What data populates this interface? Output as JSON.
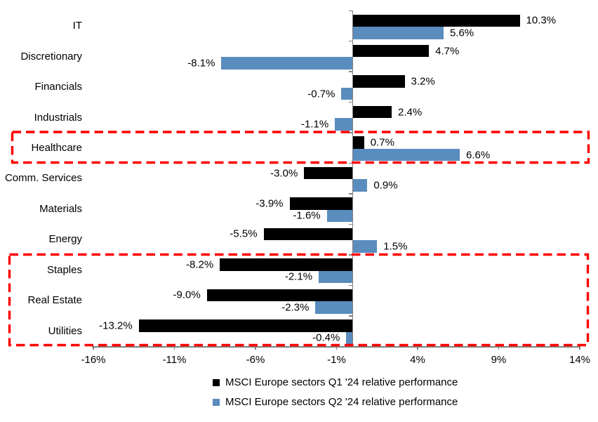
{
  "chart_data": {
    "type": "bar",
    "orientation": "horizontal",
    "title": "",
    "categories": [
      "IT",
      "Discretionary",
      "Financials",
      "Industrials",
      "Healthcare",
      "Comm. Services",
      "Materials",
      "Energy",
      "Staples",
      "Real Estate",
      "Utilities"
    ],
    "series": [
      {
        "name": "MSCI Europe sectors Q1 '24 relative performance",
        "color": "#000000",
        "values": [
          10.3,
          4.7,
          3.2,
          2.4,
          0.7,
          -3.0,
          -3.9,
          -5.5,
          -8.2,
          -9.0,
          -13.2
        ],
        "labels": [
          "10.3%",
          "4.7%",
          "3.2%",
          "2.4%",
          "0.7%",
          "-3.0%",
          "-3.9%",
          "-5.5%",
          "-8.2%",
          "-9.0%",
          "-13.2%"
        ]
      },
      {
        "name": "MSCI Europe sectors Q2 '24 relative performance",
        "color": "#5A8CBE",
        "values": [
          5.6,
          -8.1,
          -0.7,
          -1.1,
          6.6,
          0.9,
          -1.6,
          1.5,
          -2.1,
          -2.3,
          -0.4
        ],
        "labels": [
          "5.6%",
          "-8.1%",
          "-0.7%",
          "-1.1%",
          "6.6%",
          "0.9%",
          "-1.6%",
          "1.5%",
          "-2.1%",
          "-2.3%",
          "-0.4%"
        ]
      }
    ],
    "x_axis": {
      "min": -16,
      "max": 14,
      "ticks": [
        -16,
        -11,
        -6,
        -1,
        4,
        9,
        14
      ],
      "tick_labels": [
        "-16%",
        "-11%",
        "-6%",
        "-1%",
        "4%",
        "9%",
        "14%"
      ]
    },
    "grid": false,
    "legend_position": "bottom",
    "highlights": [
      {
        "name": "healthcare-highlight",
        "categories": [
          "Healthcare"
        ],
        "color": "#FF0000"
      },
      {
        "name": "defensives-highlight",
        "categories": [
          "Staples",
          "Real Estate",
          "Utilities"
        ],
        "color": "#FF0000"
      }
    ],
    "colors": {
      "q1_bar": "#000000",
      "q2_bar": "#5A8CBE",
      "axis": "#808080",
      "highlight_box": "#FF0000",
      "text": "#000000",
      "background": "#FFFFFF"
    }
  }
}
